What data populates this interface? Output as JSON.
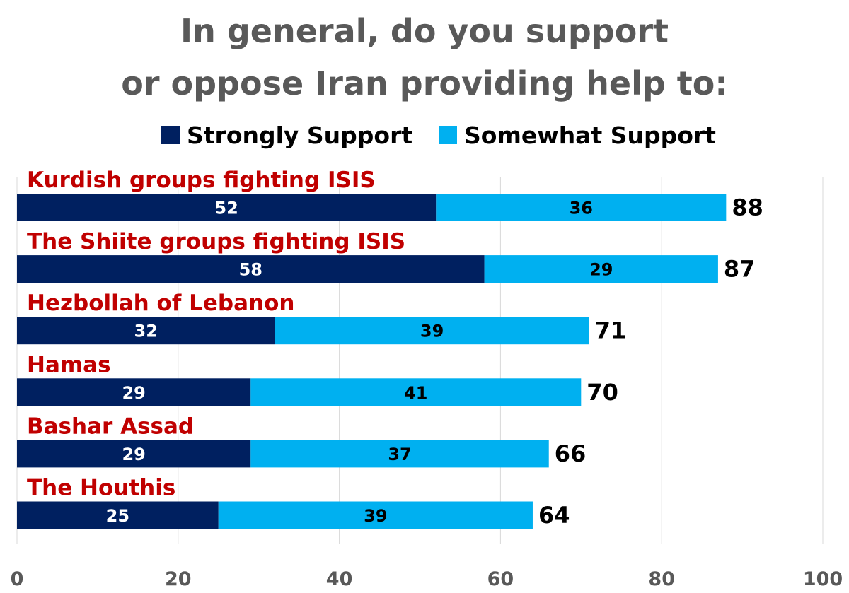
{
  "colors": {
    "strongly": "#002060",
    "somewhat": "#00b0f0",
    "category_label": "#c00000",
    "title": "#595959",
    "grid": "#d9d9d9"
  },
  "chart_data": {
    "type": "bar",
    "orientation": "horizontal",
    "stacked": true,
    "title_lines": [
      "In general, do you support",
      "or oppose Iran providing help to:"
    ],
    "categories": [
      "Kurdish groups fighting ISIS",
      "The Shiite groups fighting ISIS",
      "Hezbollah of Lebanon",
      "Hamas",
      "Bashar Assad",
      "The Houthis"
    ],
    "series": [
      {
        "name": "Strongly Support",
        "values": [
          52,
          58,
          32,
          29,
          29,
          25
        ]
      },
      {
        "name": "Somewhat Support",
        "values": [
          36,
          29,
          39,
          41,
          37,
          39
        ]
      }
    ],
    "totals": [
      "88",
      "87",
      "71",
      "70",
      "66",
      "64"
    ],
    "xlim": [
      0,
      100
    ],
    "xticks": [
      "0",
      "20",
      "40",
      "60",
      "80",
      "100"
    ],
    "grid": true,
    "legend_position": "top"
  }
}
